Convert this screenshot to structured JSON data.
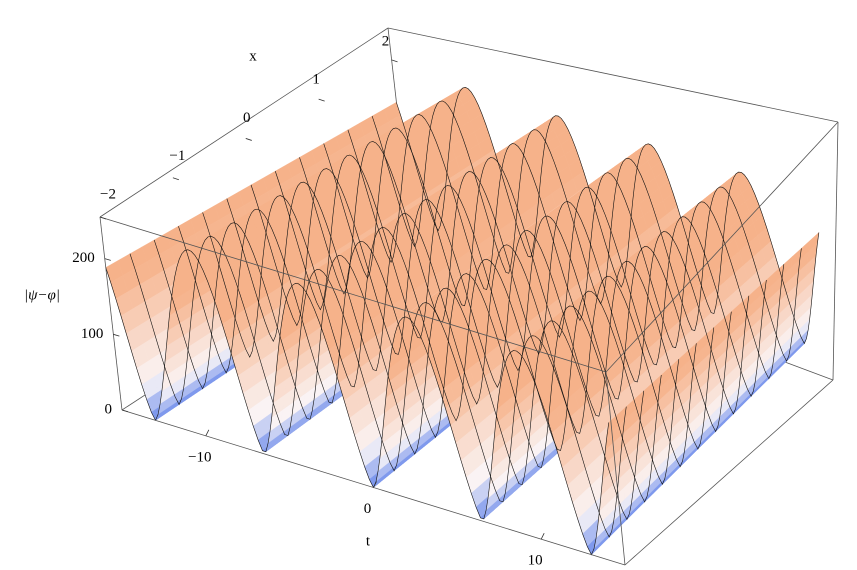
{
  "chart_data": {
    "type": "surface3d",
    "xlabel": "x",
    "tlabel": "t",
    "zlabel": "|ψ−φ|",
    "xlim": [
      -2,
      2
    ],
    "xticks": [
      {
        "value": -2,
        "label": "−2"
      },
      {
        "value": -1,
        "label": "−1"
      },
      0,
      1,
      2
    ],
    "tlim": [
      -15,
      15
    ],
    "tticks": [
      {
        "value": -10,
        "label": "−10"
      },
      0,
      10
    ],
    "zlim": [
      0,
      255
    ],
    "zticks": [
      0,
      100,
      200
    ]
  }
}
